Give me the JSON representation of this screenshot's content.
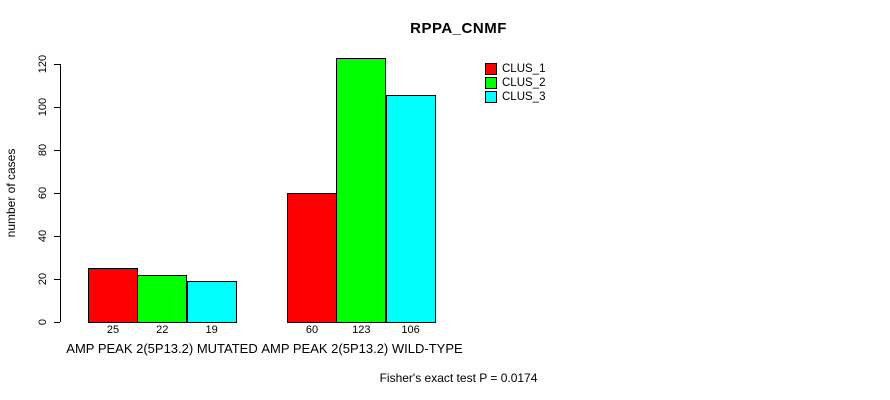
{
  "chart_data": {
    "type": "bar",
    "title": "RPPA_CNMF",
    "xlabel": "",
    "ylabel": "number of cases",
    "categories": [
      "AMP PEAK 2(5P13.2) MUTATED",
      "AMP PEAK 2(5P13.2) WILD-TYPE"
    ],
    "series": [
      {
        "name": "CLUS_1",
        "color": "#ff0000",
        "values": [
          25,
          60
        ]
      },
      {
        "name": "CLUS_2",
        "color": "#00ff00",
        "values": [
          22,
          123
        ]
      },
      {
        "name": "CLUS_3",
        "color": "#00ffff",
        "values": [
          19,
          106
        ]
      }
    ],
    "bar_value_labels": [
      [
        25,
        22,
        19
      ],
      [
        60,
        123,
        106
      ]
    ],
    "yticks": [
      0,
      20,
      40,
      60,
      80,
      100,
      120
    ],
    "ylim": [
      0,
      129
    ],
    "grid": false,
    "legend_position": "top-right-inside",
    "bar_border_color": "#000000",
    "background_color": "#ffffff"
  },
  "footer": {
    "text": "Fisher's exact test P = 0.0174"
  }
}
